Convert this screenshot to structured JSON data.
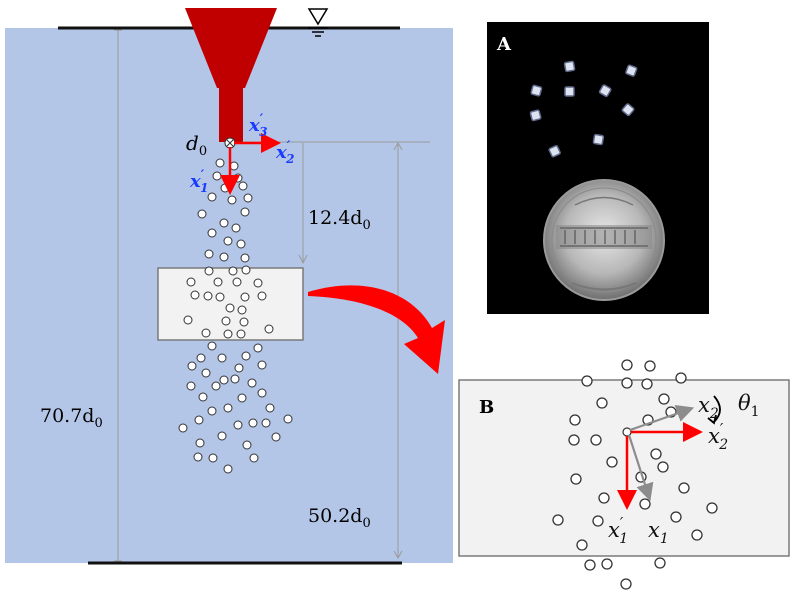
{
  "diagram": {
    "dimensions": {
      "total_depth": "70.7d",
      "total_depth_sub": "0",
      "upper_distance": "12.4d",
      "upper_distance_sub": "0",
      "lower_distance": "50.2d",
      "lower_distance_sub": "0"
    },
    "nozzle_label": "d",
    "nozzle_label_sub": "0",
    "frame_main": {
      "x1": "x",
      "x1_prime": "′",
      "x1_sub": "1",
      "x2": "x",
      "x2_prime": "′",
      "x2_sub": "2",
      "x3": "x",
      "x3_prime": "′",
      "x3_sub": "3"
    },
    "panel_a": {
      "letter": "A",
      "photo_description_text": ""
    },
    "panel_b": {
      "letter": "B",
      "x2": "x",
      "x2_sub": "2",
      "x2p": "x",
      "x2p_prime": "′",
      "x2p_sub": "2",
      "x1p": "x",
      "x1p_prime": "′",
      "x1p_sub": "1",
      "x1": "x",
      "x1_sub": "1",
      "theta": "θ",
      "theta_sub": "1"
    },
    "colors": {
      "water": "#b4c6e7",
      "nozzle": "#c00000",
      "arrow_red": "#ff0000",
      "arrow_gray": "#8c8c8c",
      "panel_bg": "#f2f2f2",
      "photo_bg": "#000000"
    }
  }
}
